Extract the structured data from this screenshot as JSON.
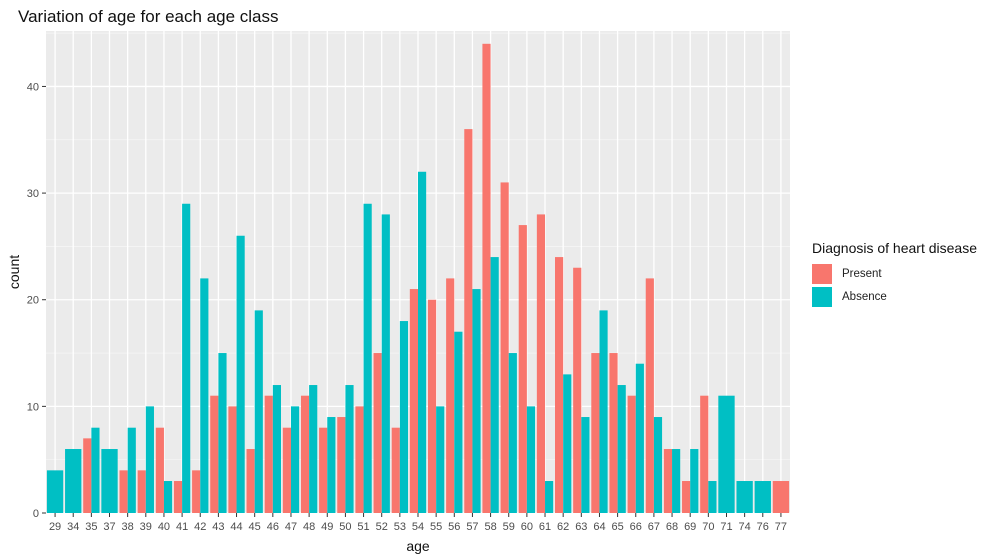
{
  "chart_data": {
    "type": "bar",
    "title": "Variation of age for each age class",
    "xlabel": "age",
    "ylabel": "count",
    "ylim": [
      0,
      45
    ],
    "yticks": [
      0,
      10,
      20,
      30,
      40
    ],
    "grid": true,
    "legend": {
      "title": "Diagnosis of heart disease",
      "position": "right"
    },
    "categories": [
      "29",
      "34",
      "35",
      "37",
      "38",
      "39",
      "40",
      "41",
      "42",
      "43",
      "44",
      "45",
      "46",
      "47",
      "48",
      "49",
      "50",
      "51",
      "52",
      "53",
      "54",
      "55",
      "56",
      "57",
      "58",
      "59",
      "60",
      "61",
      "62",
      "63",
      "64",
      "65",
      "66",
      "67",
      "68",
      "69",
      "70",
      "71",
      "74",
      "76",
      "77"
    ],
    "series": [
      {
        "name": "Present",
        "color": "#F8766D",
        "values": [
          0,
          0,
          7,
          0,
          4,
          4,
          8,
          3,
          4,
          11,
          10,
          6,
          11,
          8,
          11,
          8,
          9,
          10,
          15,
          8,
          21,
          20,
          22,
          36,
          44,
          31,
          27,
          28,
          24,
          23,
          15,
          15,
          11,
          22,
          6,
          3,
          11,
          0,
          0,
          0,
          3
        ]
      },
      {
        "name": "Absence",
        "color": "#00BFC4",
        "values": [
          4,
          6,
          8,
          6,
          8,
          10,
          3,
          29,
          22,
          15,
          26,
          19,
          12,
          10,
          12,
          9,
          12,
          29,
          28,
          18,
          32,
          10,
          17,
          21,
          24,
          15,
          10,
          3,
          13,
          9,
          19,
          12,
          14,
          9,
          6,
          6,
          3,
          11,
          3,
          3,
          0
        ]
      }
    ]
  }
}
